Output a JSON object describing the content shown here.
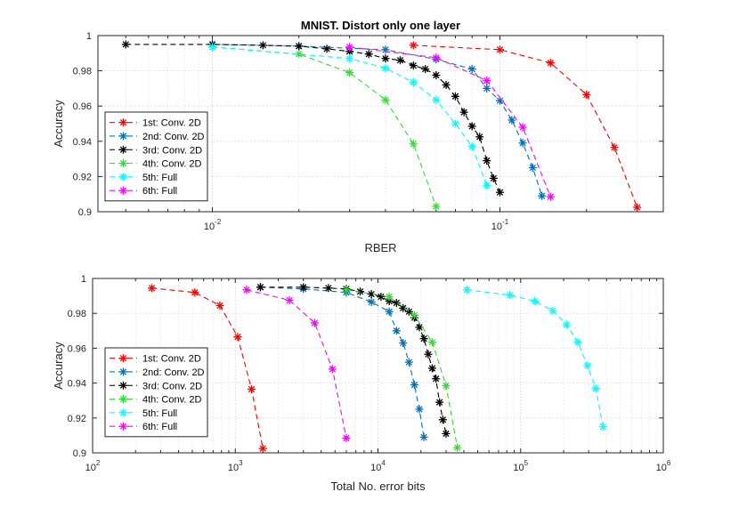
{
  "chart_data": [
    {
      "type": "line",
      "title": "MNIST. Distort only one layer",
      "xlabel": "RBER",
      "ylabel": "Accuracy",
      "xscale": "log",
      "xlim": [
        0.004,
        0.37
      ],
      "ylim": [
        0.9,
        1.0
      ],
      "yticks": [
        "0.9",
        "0.92",
        "0.94",
        "0.96",
        "0.98",
        "1"
      ],
      "xticks": [
        {
          "base": "10",
          "exp": "-2",
          "value": 0.01
        },
        {
          "base": "10",
          "exp": "-1",
          "value": 0.1
        }
      ],
      "grid": true,
      "legend_position": "middle-left",
      "series": [
        {
          "name": "1st: Conv. 2D",
          "color": "#ff0000",
          "x": [
            0.05,
            0.1,
            0.15,
            0.2,
            0.25,
            0.3
          ],
          "y": [
            0.9945,
            0.992,
            0.9845,
            0.9665,
            0.9365,
            0.9025
          ]
        },
        {
          "name": "2nd: Conv. 2D",
          "color": "#0072bd",
          "x": [
            0.01,
            0.02,
            0.04,
            0.06,
            0.08,
            0.09,
            0.1,
            0.11,
            0.12,
            0.13,
            0.14
          ],
          "y": [
            0.995,
            0.994,
            0.992,
            0.9865,
            0.981,
            0.97,
            0.963,
            0.952,
            0.939,
            0.925,
            0.909
          ]
        },
        {
          "name": "3rd: Conv. 2D",
          "color": "#000000",
          "x": [
            0.005,
            0.01,
            0.015,
            0.02,
            0.025,
            0.03,
            0.035,
            0.04,
            0.045,
            0.05,
            0.055,
            0.06,
            0.065,
            0.07,
            0.075,
            0.08,
            0.085,
            0.09,
            0.095,
            0.1
          ],
          "y": [
            0.995,
            0.995,
            0.9945,
            0.994,
            0.9925,
            0.991,
            0.9895,
            0.987,
            0.986,
            0.983,
            0.981,
            0.9775,
            0.972,
            0.9655,
            0.9565,
            0.9485,
            0.9425,
            0.929,
            0.919,
            0.911
          ]
        },
        {
          "name": "4th: Conv. 2D",
          "color": "#33dd33",
          "x": [
            0.01,
            0.02,
            0.03,
            0.04,
            0.05,
            0.06
          ],
          "y": [
            0.9935,
            0.9895,
            0.979,
            0.9635,
            0.9385,
            0.903
          ]
        },
        {
          "name": "5th: Full",
          "color": "#00ffff",
          "x": [
            0.01,
            0.03,
            0.04,
            0.05,
            0.06,
            0.07,
            0.08,
            0.09
          ],
          "y": [
            0.9935,
            0.987,
            0.9815,
            0.9735,
            0.9635,
            0.95,
            0.937,
            0.915
          ]
        },
        {
          "name": "6th: Full",
          "color": "#ff00ff",
          "x": [
            0.03,
            0.06,
            0.09,
            0.12,
            0.15
          ],
          "y": [
            0.9935,
            0.9875,
            0.9745,
            0.948,
            0.9085
          ]
        }
      ]
    },
    {
      "type": "line",
      "title": "",
      "xlabel": "Total No. error bits",
      "ylabel": "Accuracy",
      "xscale": "log",
      "xlim": [
        100,
        1000000
      ],
      "ylim": [
        0.9,
        1.0
      ],
      "yticks": [
        "0.9",
        "0.92",
        "0.94",
        "0.96",
        "0.98",
        "1"
      ],
      "xticks": [
        {
          "base": "10",
          "exp": "2",
          "value": 100
        },
        {
          "base": "10",
          "exp": "3",
          "value": 1000
        },
        {
          "base": "10",
          "exp": "4",
          "value": 10000
        },
        {
          "base": "10",
          "exp": "5",
          "value": 100000
        },
        {
          "base": "10",
          "exp": "6",
          "value": 1000000
        }
      ],
      "grid": true,
      "legend_position": "lower-left",
      "series": [
        {
          "name": "1st: Conv. 2D",
          "color": "#ff0000",
          "x": [
            260,
            520,
            780,
            1040,
            1300,
            1560
          ],
          "y": [
            0.9945,
            0.992,
            0.9845,
            0.9665,
            0.9365,
            0.9025
          ]
        },
        {
          "name": "2nd: Conv. 2D",
          "color": "#0072bd",
          "x": [
            1500,
            3000,
            6000,
            9000,
            12000,
            13500,
            15000,
            16500,
            18000,
            19500,
            21000
          ],
          "y": [
            0.995,
            0.994,
            0.992,
            0.9865,
            0.981,
            0.97,
            0.963,
            0.952,
            0.939,
            0.925,
            0.909
          ]
        },
        {
          "name": "3rd: Conv. 2D",
          "color": "#000000",
          "x": [
            1500,
            3000,
            4500,
            6000,
            7500,
            9000,
            10500,
            12000,
            13500,
            15000,
            16500,
            18000,
            19500,
            21000,
            22500,
            24000,
            25500,
            27000,
            28500,
            30000
          ],
          "y": [
            0.995,
            0.995,
            0.9945,
            0.994,
            0.9925,
            0.991,
            0.9895,
            0.987,
            0.986,
            0.983,
            0.981,
            0.9775,
            0.972,
            0.9655,
            0.9565,
            0.9485,
            0.9425,
            0.929,
            0.919,
            0.911
          ]
        },
        {
          "name": "4th: Conv. 2D",
          "color": "#33dd33",
          "x": [
            6000,
            12000,
            18000,
            24000,
            30000,
            36000
          ],
          "y": [
            0.9935,
            0.9895,
            0.979,
            0.9635,
            0.9385,
            0.903
          ]
        },
        {
          "name": "5th: Full",
          "color": "#00ffff",
          "x": [
            42000,
            84000,
            126000,
            168000,
            210000,
            252000,
            294000,
            336000,
            378000
          ],
          "y": [
            0.9935,
            0.9905,
            0.987,
            0.9815,
            0.9735,
            0.9635,
            0.95,
            0.937,
            0.915
          ]
        },
        {
          "name": "6th: Full",
          "color": "#ff00ff",
          "x": [
            1200,
            2400,
            3600,
            4800,
            6000
          ],
          "y": [
            0.9935,
            0.9875,
            0.9745,
            0.948,
            0.9085
          ]
        }
      ]
    }
  ]
}
